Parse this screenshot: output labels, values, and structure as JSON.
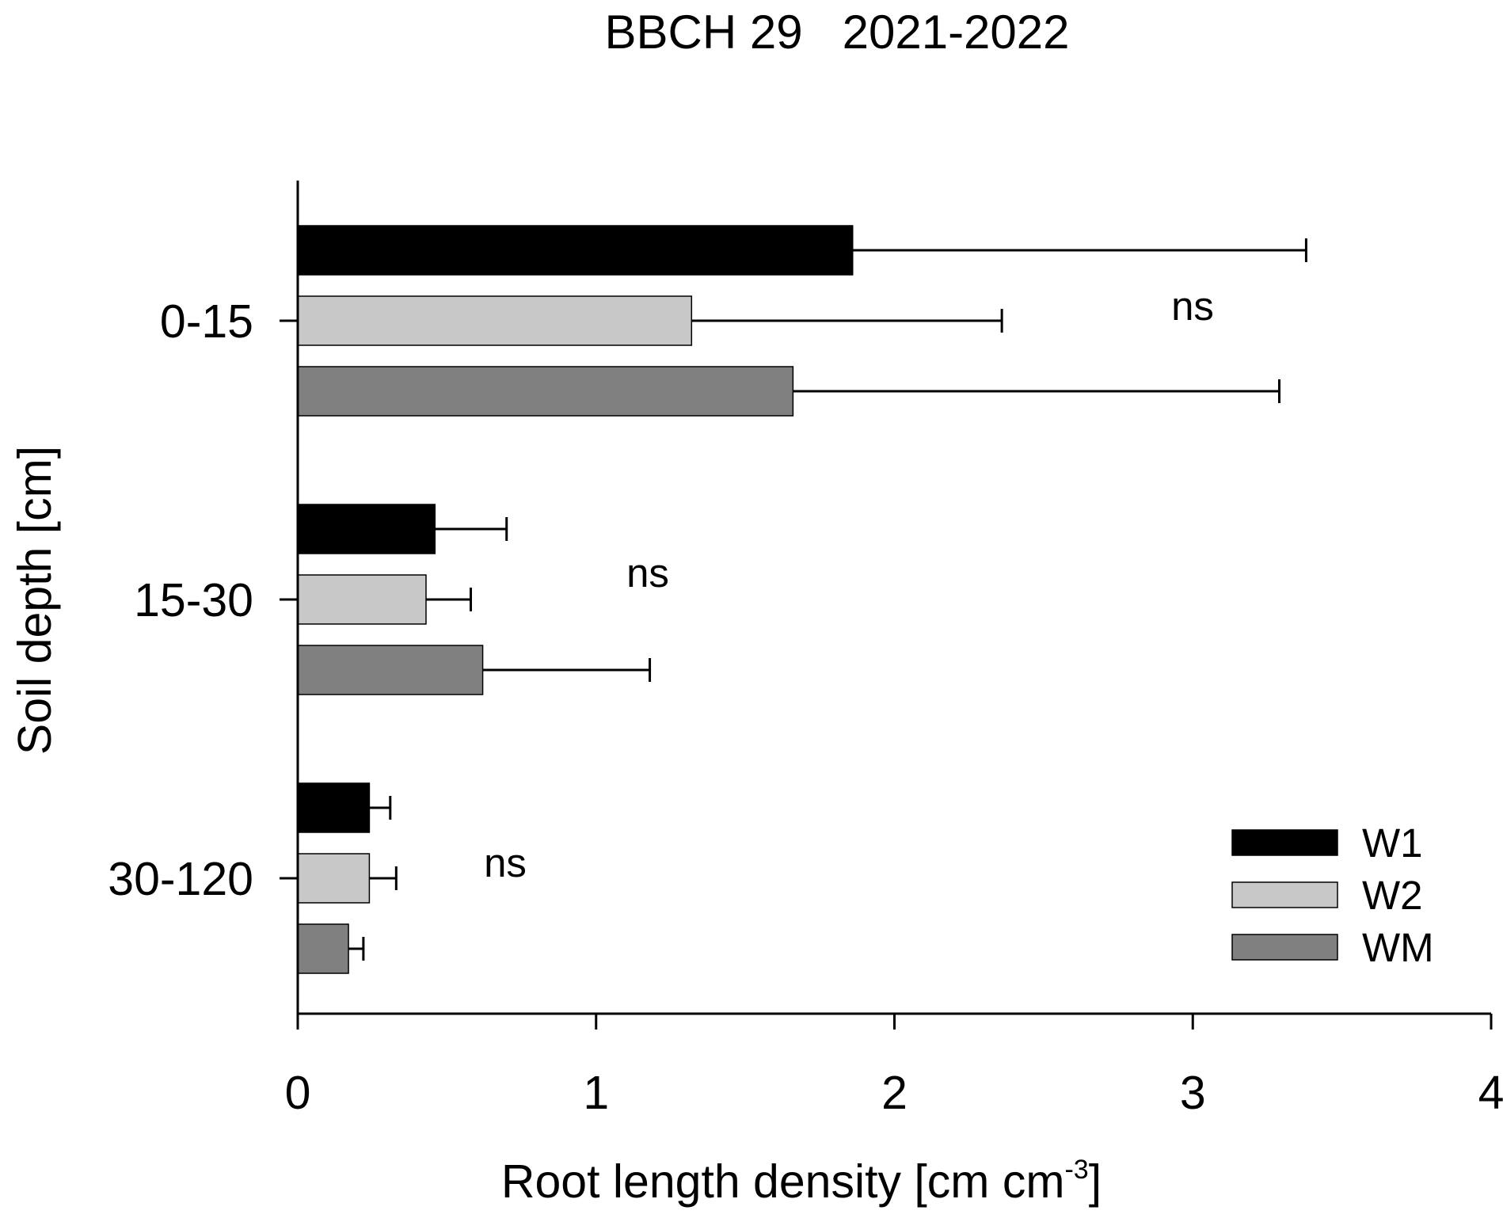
{
  "chart_data": {
    "type": "bar",
    "orientation": "horizontal",
    "title": "BBCH 29   2021-2022",
    "xlabel": "Root length density [cm cm",
    "xlabel_superscript": "-3",
    "xlabel_suffix": "]",
    "ylabel": "Soil depth [cm]",
    "categories": [
      "0-15",
      "15-30",
      "30-120"
    ],
    "xlim": [
      0,
      4
    ],
    "xticks": [
      0,
      1,
      2,
      3,
      4
    ],
    "grid": false,
    "legend_position": "bottom-right",
    "series": [
      {
        "name": "W1",
        "color": "#000000",
        "values": [
          1.86,
          0.46,
          0.24
        ],
        "errors": [
          1.52,
          0.24,
          0.07
        ]
      },
      {
        "name": "W2",
        "color": "#c8c8c8",
        "values": [
          1.32,
          0.43,
          0.24
        ],
        "errors": [
          1.04,
          0.15,
          0.09
        ]
      },
      {
        "name": "WM",
        "color": "#808080",
        "values": [
          1.66,
          0.62,
          0.17
        ],
        "errors": [
          1.63,
          0.56,
          0.05
        ]
      }
    ],
    "annotations": [
      {
        "category": "0-15",
        "text": "ns"
      },
      {
        "category": "15-30",
        "text": "ns"
      },
      {
        "category": "30-120",
        "text": "ns"
      }
    ]
  }
}
